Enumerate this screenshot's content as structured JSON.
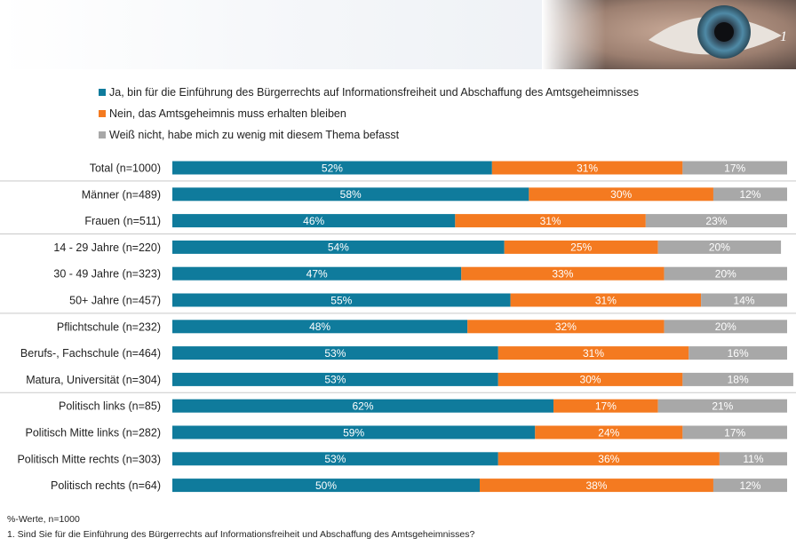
{
  "colors": {
    "yes": "#0f7b9c",
    "no": "#f47a20",
    "unknown": "#a8a8a8",
    "separator": "#c9c9c9"
  },
  "legend": [
    {
      "key": "yes",
      "label": "Ja, bin für die Einführung des Bürgerrechts auf Informationsfreiheit und Abschaffung des Amtsgeheimnisses"
    },
    {
      "key": "no",
      "label": "Nein, das Amtsgeheimnis muss erhalten bleiben"
    },
    {
      "key": "unknown",
      "label": "Weiß nicht, habe mich zu wenig mit diesem Thema befasst"
    }
  ],
  "header": {
    "page_number": "1"
  },
  "chart_data": {
    "type": "bar",
    "orientation": "horizontal-stacked-100",
    "categories": [
      "Total (n=1000)",
      "Männer (n=489)",
      "Frauen (n=511)",
      "14 - 29 Jahre (n=220)",
      "30 - 49 Jahre (n=323)",
      "50+ Jahre (n=457)",
      "Pflichtschule (n=232)",
      "Berufs-, Fachschule (n=464)",
      "Matura, Universität (n=304)",
      "Politisch links (n=85)",
      "Politisch Mitte links (n=282)",
      "Politisch Mitte rechts (n=303)",
      "Politisch rechts (n=64)"
    ],
    "groups": [
      [
        0
      ],
      [
        1,
        2
      ],
      [
        3,
        4,
        5
      ],
      [
        6,
        7,
        8
      ],
      [
        9,
        10,
        11,
        12
      ]
    ],
    "series": [
      {
        "name": "Ja, bin für die Einführung des Bürgerrechts auf Informationsfreiheit und Abschaffung des Amtsgeheimnisses",
        "key": "yes",
        "values": [
          52,
          58,
          46,
          54,
          47,
          55,
          48,
          53,
          53,
          62,
          59,
          53,
          50
        ]
      },
      {
        "name": "Nein, das Amtsgeheimnis muss erhalten bleiben",
        "key": "no",
        "values": [
          31,
          30,
          31,
          25,
          33,
          31,
          32,
          31,
          30,
          17,
          24,
          36,
          38
        ]
      },
      {
        "name": "Weiß nicht, habe mich zu wenig mit diesem Thema befasst",
        "key": "unknown",
        "values": [
          17,
          12,
          23,
          20,
          20,
          14,
          20,
          16,
          18,
          21,
          17,
          11,
          12
        ]
      }
    ],
    "value_suffix": "%",
    "xlim": [
      0,
      100
    ],
    "legend_position": "top"
  },
  "footnote": {
    "line1": "%-Werte, n=1000",
    "line2": "1. Sind Sie für die Einführung des Bürgerrechts auf Informationsfreiheit und Abschaffung des Amtsgeheimnisses?"
  }
}
